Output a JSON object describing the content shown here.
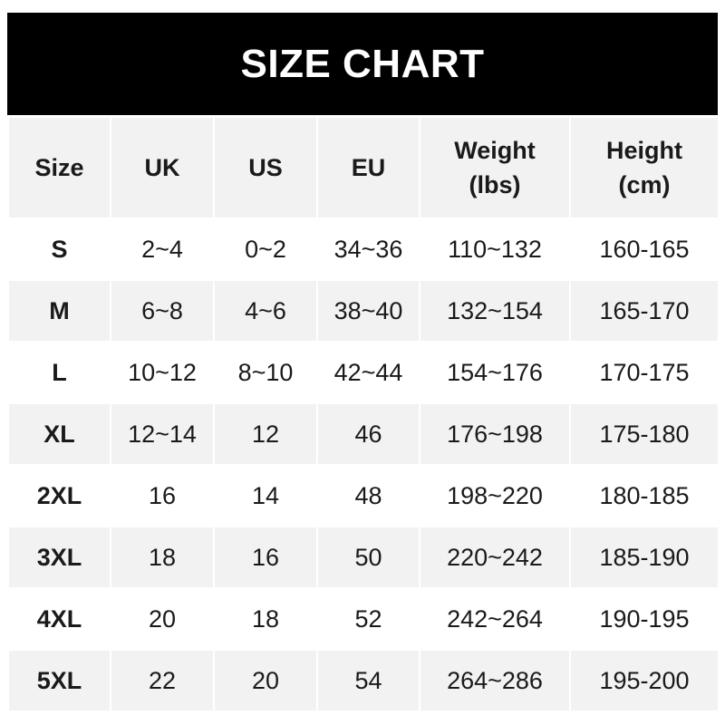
{
  "title": "SIZE CHART",
  "headers": [
    {
      "line1": "Size",
      "line2": ""
    },
    {
      "line1": "UK",
      "line2": ""
    },
    {
      "line1": "US",
      "line2": ""
    },
    {
      "line1": "EU",
      "line2": ""
    },
    {
      "line1": "Weight",
      "line2": "(lbs)"
    },
    {
      "line1": "Height",
      "line2": "(cm)"
    }
  ],
  "rows": [
    [
      "S",
      "2~4",
      "0~2",
      "34~36",
      "110~132",
      "160-165"
    ],
    [
      "M",
      "6~8",
      "4~6",
      "38~40",
      "132~154",
      "165-170"
    ],
    [
      "L",
      "10~12",
      "8~10",
      "42~44",
      "154~176",
      "170-175"
    ],
    [
      "XL",
      "12~14",
      "12",
      "46",
      "176~198",
      "175-180"
    ],
    [
      "2XL",
      "16",
      "14",
      "48",
      "198~220",
      "180-185"
    ],
    [
      "3XL",
      "18",
      "16",
      "50",
      "220~242",
      "185-190"
    ],
    [
      "4XL",
      "20",
      "18",
      "52",
      "242~264",
      "190-195"
    ],
    [
      "5XL",
      "22",
      "20",
      "54",
      "264~286",
      "195-200"
    ]
  ],
  "colors": {
    "banner": "#000000",
    "banner_text": "#ffffff",
    "stripe": "#f2f2f2"
  }
}
